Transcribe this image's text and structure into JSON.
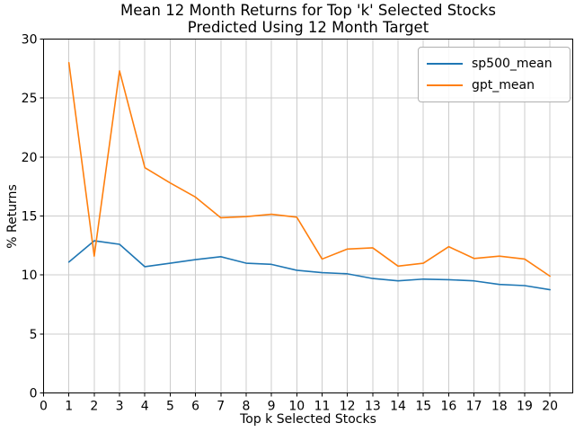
{
  "chart_data": {
    "type": "line",
    "title": "Mean 12 Month Returns for Top 'k' Selected Stocks",
    "subtitle": "Predicted Using 12 Month Target",
    "xlabel": "Top k Selected Stocks",
    "ylabel": "% Returns",
    "xlim": [
      0,
      20.9
    ],
    "ylim": [
      0,
      30
    ],
    "x_ticks": [
      0,
      1,
      2,
      3,
      4,
      5,
      6,
      7,
      8,
      9,
      10,
      11,
      12,
      13,
      14,
      15,
      16,
      17,
      18,
      19,
      20
    ],
    "y_ticks": [
      0,
      5,
      10,
      15,
      20,
      25,
      30
    ],
    "grid": true,
    "legend_position": "upper right",
    "x": [
      1,
      2,
      3,
      4,
      5,
      6,
      7,
      8,
      9,
      10,
      11,
      12,
      13,
      14,
      15,
      16,
      17,
      18,
      19,
      20
    ],
    "series": [
      {
        "name": "sp500_mean",
        "color": "#1f77b4",
        "values": [
          11.1,
          12.9,
          12.6,
          10.7,
          11.0,
          11.3,
          11.55,
          11.0,
          10.9,
          10.4,
          10.2,
          10.1,
          9.7,
          9.5,
          9.65,
          9.6,
          9.5,
          9.2,
          9.1,
          8.75
        ]
      },
      {
        "name": "gpt_mean",
        "color": "#ff7f0e",
        "values": [
          28.0,
          11.6,
          27.3,
          19.1,
          17.8,
          16.6,
          14.85,
          14.95,
          15.15,
          14.9,
          11.35,
          12.2,
          12.3,
          10.75,
          11.0,
          12.4,
          11.4,
          11.6,
          11.35,
          9.9
        ]
      }
    ],
    "colors": {
      "grid": "#cccccc",
      "spine": "#000000",
      "background": "#ffffff"
    }
  }
}
